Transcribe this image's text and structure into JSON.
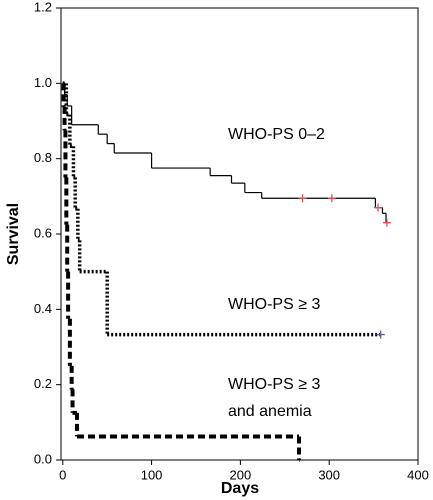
{
  "chart_data": {
    "type": "step",
    "x_label": "Days",
    "y_label": "Survival",
    "xlim": [
      -2,
      400
    ],
    "ylim": [
      0,
      1.2
    ],
    "xticks": [
      0,
      100,
      200,
      300,
      400
    ],
    "yticks": [
      {
        "value": 0,
        "label": "0.0"
      },
      0.2,
      0.4,
      0.6,
      0.8,
      {
        "value": 1,
        "label": "1.0"
      },
      1.2
    ],
    "series": [
      {
        "label_lines": [
          "WHO-PS 0–2"
        ],
        "color": "#000000",
        "style": "solid",
        "censor_color": "#e05050",
        "x": [
          0,
          2,
          5,
          10,
          40,
          50,
          58,
          100,
          166,
          190,
          205,
          224,
          352,
          360,
          364
        ],
        "values": [
          1,
          0.97,
          0.94,
          0.89,
          0.865,
          0.84,
          0.815,
          0.775,
          0.755,
          0.735,
          0.71,
          0.695,
          0.67,
          0.655,
          0.63
        ],
        "censor_x": [
          270,
          303,
          355,
          365
        ],
        "censor_values": [
          0.695,
          0.695,
          0.67,
          0.63
        ]
      },
      {
        "label_lines": [
          "WHO-PS ≥ 3"
        ],
        "color": "#000000",
        "style": "dotted",
        "censor_color": "#6060b0",
        "x": [
          0,
          4,
          8,
          12,
          14,
          17,
          19,
          50
        ],
        "values": [
          1,
          0.917,
          0.833,
          0.75,
          0.667,
          0.583,
          0.5,
          0.333
        ],
        "censor_x": [
          358
        ],
        "censor_values": [
          0.333
        ]
      },
      {
        "label_lines": [
          "WHO-PS ≥ 3",
          "and anemia"
        ],
        "color": "#000000",
        "style": "dashed",
        "x": [
          0,
          1,
          2,
          3,
          4,
          5,
          6,
          8,
          10,
          11,
          16,
          266
        ],
        "values": [
          1,
          0.9375,
          0.875,
          0.75,
          0.625,
          0.5,
          0.375,
          0.25,
          0.1875,
          0.125,
          0.0625,
          0
        ],
        "censor_x": [],
        "censor_values": []
      }
    ]
  }
}
